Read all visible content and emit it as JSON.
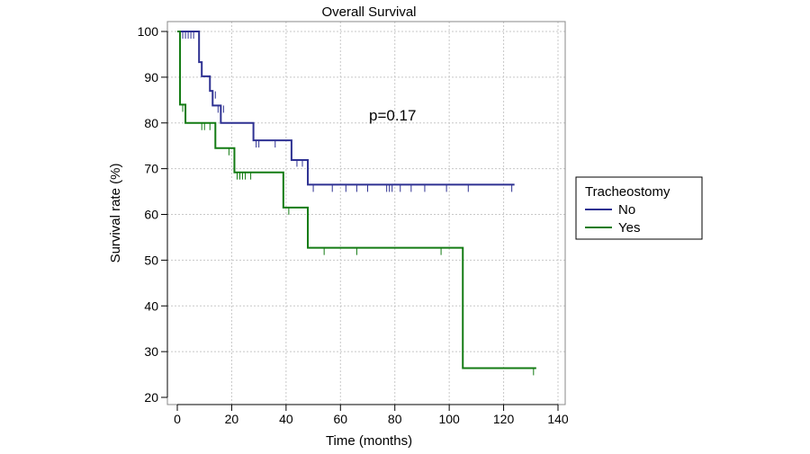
{
  "chart_data": {
    "type": "line",
    "title": "Overall Survival",
    "xlabel": "Time (months)",
    "ylabel": "Survival rate (%)",
    "xlim": [
      0,
      140
    ],
    "ylim": [
      20,
      100
    ],
    "x_ticks": [
      0,
      20,
      40,
      60,
      80,
      100,
      120,
      140
    ],
    "y_ticks": [
      20,
      30,
      40,
      50,
      60,
      70,
      80,
      90,
      100
    ],
    "grid": true,
    "annotation": "p=0.17",
    "legend": {
      "title": "Tracheostomy",
      "position": "right"
    },
    "series": [
      {
        "name": "No",
        "color": "#2e3192",
        "steps": [
          [
            0,
            100
          ],
          [
            8,
            93.3
          ],
          [
            9,
            90.2
          ],
          [
            12,
            87
          ],
          [
            13,
            83.8
          ],
          [
            16,
            80
          ],
          [
            28,
            76.2
          ],
          [
            42,
            71.9
          ],
          [
            48,
            66.5
          ],
          [
            124,
            66.5
          ]
        ],
        "censored": [
          [
            2,
            100
          ],
          [
            3,
            100
          ],
          [
            4,
            100
          ],
          [
            5,
            100
          ],
          [
            6,
            100
          ],
          [
            14,
            86.9
          ],
          [
            15,
            83.8
          ],
          [
            17,
            83.8
          ],
          [
            29,
            76.2
          ],
          [
            30,
            76.2
          ],
          [
            36,
            76.2
          ],
          [
            44,
            72
          ],
          [
            46,
            72
          ],
          [
            50,
            66.5
          ],
          [
            57,
            66.5
          ],
          [
            62,
            66.5
          ],
          [
            66,
            66.5
          ],
          [
            70,
            66.5
          ],
          [
            77,
            66.5
          ],
          [
            78,
            66.5
          ],
          [
            79,
            66.5
          ],
          [
            82,
            66.5
          ],
          [
            86,
            66.5
          ],
          [
            91,
            66.5
          ],
          [
            99,
            66.5
          ],
          [
            107,
            66.5
          ],
          [
            123,
            66.5
          ]
        ]
      },
      {
        "name": "Yes",
        "color": "#137b13",
        "steps": [
          [
            0,
            100
          ],
          [
            1,
            84
          ],
          [
            3,
            80
          ],
          [
            14,
            74.5
          ],
          [
            21,
            69.2
          ],
          [
            39,
            61.5
          ],
          [
            48,
            52.7
          ],
          [
            105,
            26.4
          ],
          [
            132,
            26.4
          ]
        ],
        "censored": [
          [
            2,
            84
          ],
          [
            3,
            84
          ],
          [
            9,
            80
          ],
          [
            10,
            80
          ],
          [
            12,
            80
          ],
          [
            19,
            74.5
          ],
          [
            22,
            69.2
          ],
          [
            23,
            69.2
          ],
          [
            24,
            69.2
          ],
          [
            25,
            69.2
          ],
          [
            27,
            69.2
          ],
          [
            41,
            61.5
          ],
          [
            54,
            52.7
          ],
          [
            66,
            52.7
          ],
          [
            97,
            52.7
          ],
          [
            131,
            26.4
          ]
        ]
      }
    ]
  }
}
